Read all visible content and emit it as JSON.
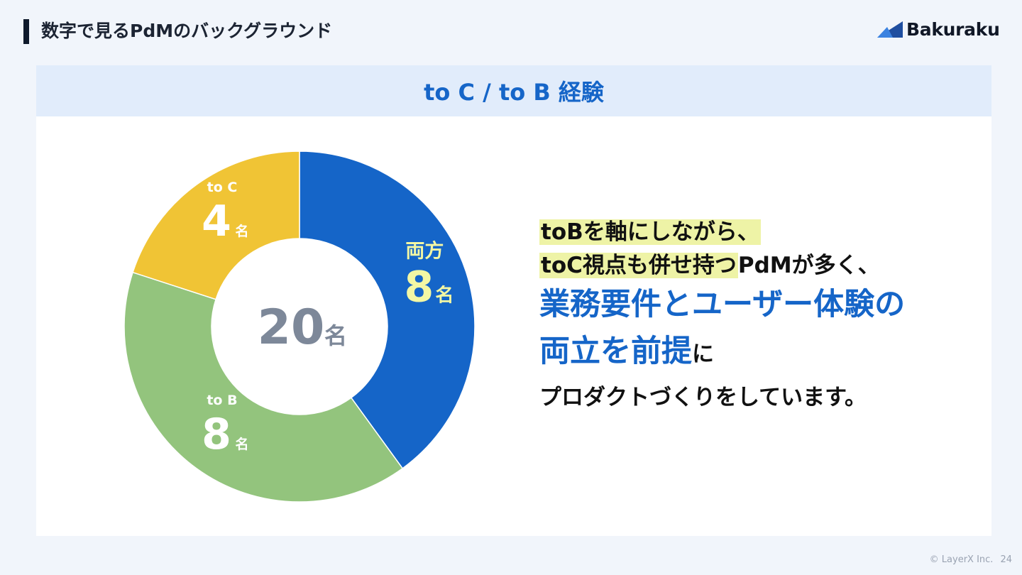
{
  "header": {
    "title": "数字で見るPdMのバックグラウンド",
    "logo_text": "Bakuraku"
  },
  "card": {
    "title": "to C / to B 経験"
  },
  "chart_data": {
    "type": "pie",
    "donut": true,
    "center_value": "20",
    "center_unit": "名",
    "slices": [
      {
        "label": "両方",
        "value": 8,
        "unit": "名",
        "color": "#1565c8",
        "label_color": "#f3f7a4"
      },
      {
        "label": "to B",
        "value": 8,
        "unit": "名",
        "color": "#93c47d",
        "label_color": "#ffffff"
      },
      {
        "label": "to C",
        "value": 4,
        "unit": "名",
        "color": "#f0c435",
        "label_color": "#ffffff"
      }
    ]
  },
  "message": {
    "line1": "toBを軸にしながら、",
    "line2_hl": "toC視点も併せ持つ",
    "line2_rest": "PdMが多く、",
    "line3": "業務要件とユーザー体験の",
    "line4_big": "両立を前提",
    "line4_small": "に",
    "line5": "プロダクトづくりをしています。"
  },
  "footer": {
    "copyright": "© LayerX Inc.",
    "page": "24"
  },
  "colors": {
    "accent": "#1565c8",
    "header_bg": "#e1ecfb",
    "page_bg": "#f1f5fb",
    "highlight": "#eef3a6"
  }
}
